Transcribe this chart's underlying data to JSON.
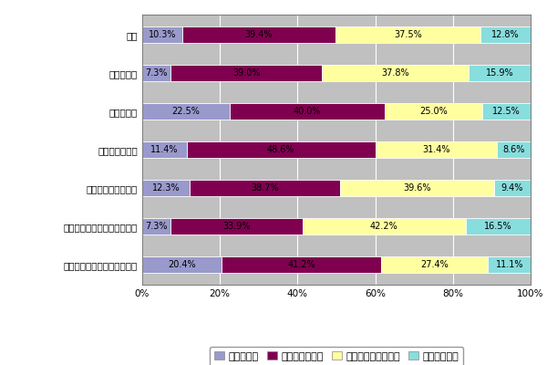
{
  "categories": [
    "製造",
    "流通・商業",
    "金融・保険",
    "通信・メディア",
    "運輸・建設・不動産",
    "コンピュータ・情報サービス",
    "教育・医療・その他サービス"
  ],
  "series": [
    {
      "label": "感じている",
      "values": [
        10.3,
        7.3,
        22.5,
        11.4,
        12.3,
        7.3,
        20.4
      ],
      "color": "#9999cc"
    },
    {
      "label": "やや感じている",
      "values": [
        39.4,
        39.0,
        40.0,
        48.6,
        38.7,
        33.9,
        41.2
      ],
      "color": "#800050"
    },
    {
      "label": "あまり感じていない",
      "values": [
        37.5,
        37.8,
        25.0,
        31.4,
        39.6,
        42.2,
        27.4
      ],
      "color": "#ffffa0"
    },
    {
      "label": "感じていない",
      "values": [
        12.8,
        15.9,
        12.5,
        8.6,
        9.4,
        16.5,
        11.1
      ],
      "color": "#88dddd"
    }
  ],
  "xlim": [
    0,
    100
  ],
  "xticks": [
    0,
    20,
    40,
    60,
    80,
    100
  ],
  "xticklabels": [
    "0%",
    "20%",
    "40%",
    "60%",
    "80%",
    "100%"
  ],
  "figure_bg": "#ffffff",
  "axes_bg": "#c0c0c0",
  "bar_bg": "#c0c0c0",
  "bar_height": 0.42,
  "fontsize_ticks": 7.5,
  "fontsize_bar_label": 7,
  "fontsize_legend": 8,
  "legend_labels": [
    "感じている",
    "やや感じている",
    "あまり感じていない",
    "感じていない"
  ]
}
